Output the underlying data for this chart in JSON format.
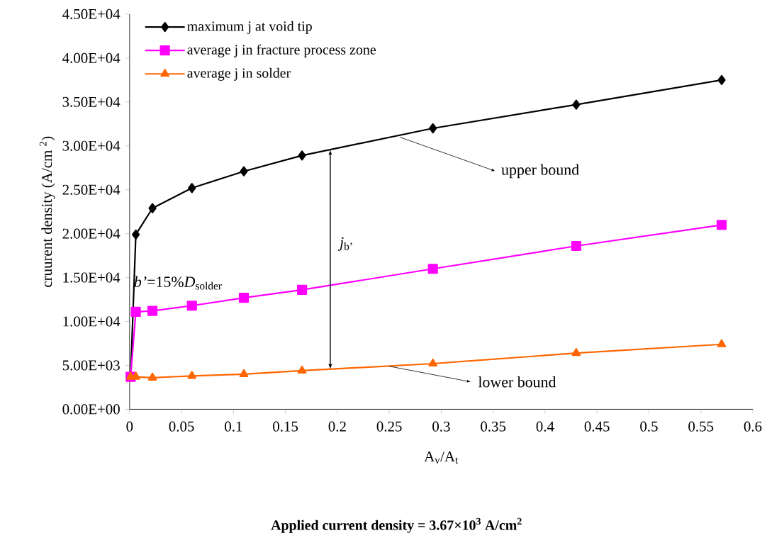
{
  "chart_data": {
    "type": "line",
    "title": "**Applied current density = 3.67×10$^{3}$ A/cm$^{2}$**",
    "xlabel": "A$_{v}$/A$_{t}$",
    "ylabel": "cruurent density (A/cm $^{2}$)",
    "x": [
      0.001,
      0.006,
      0.022,
      0.06,
      0.11,
      0.166,
      0.292,
      0.43,
      0.57
    ],
    "series": [
      {
        "name": "maximum j at void tip",
        "color": "#000000",
        "marker": "diamond",
        "values": [
          3700,
          19900,
          22900,
          25200,
          27100,
          28900,
          32000,
          34700,
          37500
        ]
      },
      {
        "name": "average j in fracture process zone",
        "color": "#ff00ff",
        "marker": "square",
        "values": [
          3700,
          11100,
          11200,
          11800,
          12700,
          13600,
          16000,
          18600,
          21000
        ]
      },
      {
        "name": "average j in solder",
        "color": "#ff6600",
        "marker": "triangle",
        "values": [
          3700,
          3700,
          3600,
          3800,
          4000,
          4400,
          5200,
          6400,
          7400
        ]
      }
    ],
    "xlim": [
      0,
      0.6
    ],
    "xticks": [
      0,
      0.05,
      0.1,
      0.15,
      0.2,
      0.25,
      0.3,
      0.35,
      0.4,
      0.45,
      0.5,
      0.55,
      0.6
    ],
    "ylim": [
      0,
      45000
    ],
    "yticks": [
      {
        "value": 0,
        "label": "0.00E+00"
      },
      {
        "value": 5000,
        "label": "5.00E+03"
      },
      {
        "value": 10000,
        "label": "1.00E+04"
      },
      {
        "value": 15000,
        "label": "1.50E+04"
      },
      {
        "value": 20000,
        "label": "2.00E+04"
      },
      {
        "value": 25000,
        "label": "2.50E+04"
      },
      {
        "value": 30000,
        "label": "3.00E+04"
      },
      {
        "value": 35000,
        "label": "3.50E+04"
      },
      {
        "value": 40000,
        "label": "4.00E+04"
      },
      {
        "value": 45000,
        "label": "4.50E+04"
      }
    ],
    "grid": false,
    "legend": "top left",
    "annotations": [
      {
        "text": "upper bound",
        "x": 0.26,
        "y": 31000
      },
      {
        "text": "lower bound",
        "x": 0.25,
        "y": 4900
      },
      "*j*$_{b’}$",
      {
        "text": "*b’*=15%*D*$_{solder}$",
        "x": 0.004,
        "y": 14400
      }
    ]
  }
}
